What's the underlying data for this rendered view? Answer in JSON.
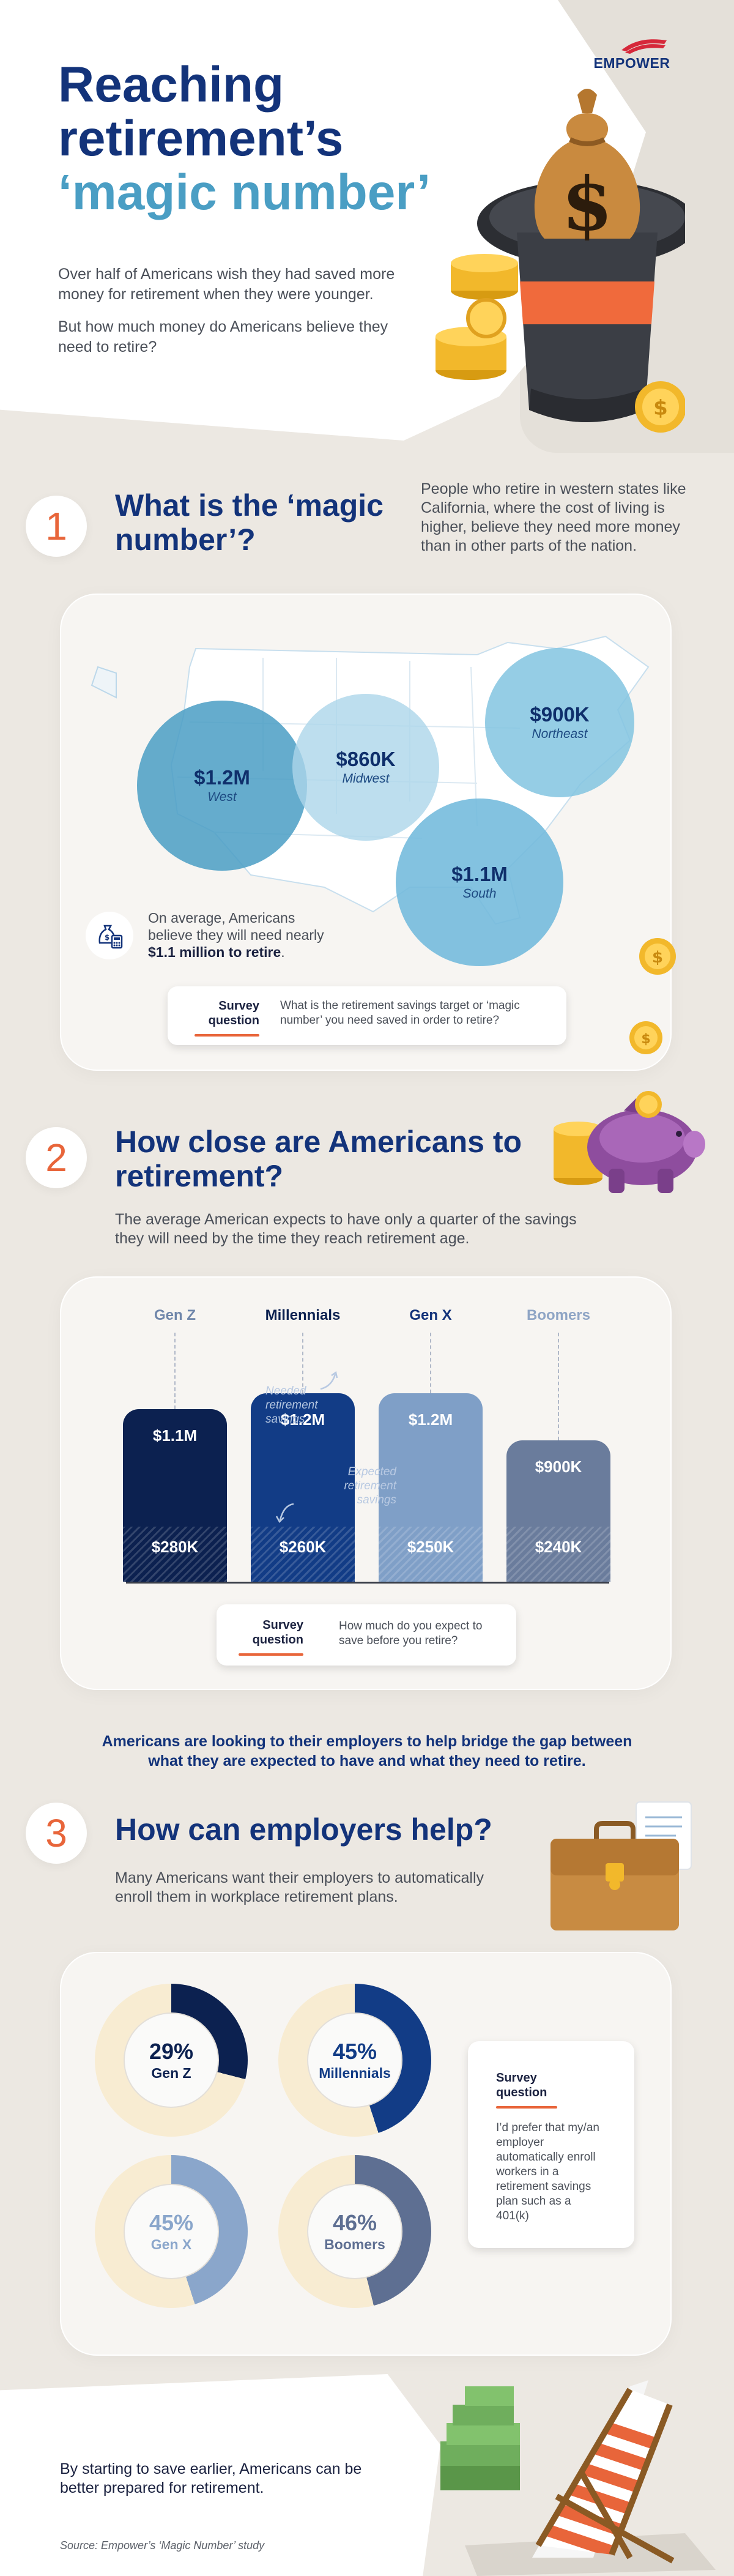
{
  "brand": {
    "logo_text": "EMPOWER",
    "accent_color": "#13337a",
    "orange": "#e8653a"
  },
  "hero": {
    "title_line1": "Reaching",
    "title_line2": "retirement’s",
    "title_accent": "‘magic number’",
    "para1": "Over half of Americans wish they had saved more money for retirement when they were younger.",
    "para2": "But how much money do Americans believe they need to retire?"
  },
  "section1": {
    "number": "1",
    "title": "What is the ‘magic number’?",
    "text": "People who retire in western states like California, where the cost of living is higher, believe they need more money than in other parts of the nation.",
    "regions": [
      {
        "value": "$1.2M",
        "label": "West"
      },
      {
        "value": "$860K",
        "label": "Midwest"
      },
      {
        "value": "$900K",
        "label": "Northeast"
      },
      {
        "value": "$1.1M",
        "label": "South"
      }
    ],
    "note_line1": "On average, Americans",
    "note_line2": "believe they will need nearly",
    "note_bold": "$1.1 million to retire",
    "note_end": ".",
    "survey_label": "Survey question",
    "survey_text": "What is the retirement savings target or ‘magic number’ you need saved in order to retire?"
  },
  "section2": {
    "number": "2",
    "title": "How close are Americans to retirement?",
    "text": "The average American expects to have only a quarter of the savings they will need by the time they reach retirement age.",
    "chart_data": {
      "type": "bar",
      "categories": [
        "Gen Z",
        "Millennials",
        "Gen X",
        "Boomers"
      ],
      "series": [
        {
          "name": "Needed retirement savings",
          "values": [
            1.1,
            1.2,
            1.2,
            0.9
          ],
          "labels": [
            "$1.1M",
            "$1.2M",
            "$1.2M",
            "$900K"
          ]
        },
        {
          "name": "Expected retirement savings",
          "values": [
            0.28,
            0.26,
            0.25,
            0.24
          ],
          "labels": [
            "$280K",
            "$260K",
            "$250K",
            "$240K"
          ]
        }
      ],
      "colors": [
        "#0c2150",
        "#123c86",
        "#7f9fc7",
        "#6a7c9c"
      ],
      "label_colors": [
        "#6f86aa",
        "#0c2150",
        "#13337a",
        "#8fa5c5"
      ]
    },
    "annot_needed": "Needed retirement savings",
    "annot_expected": "Expected retirement savings",
    "survey_label": "Survey question",
    "survey_text": "How much do you expect to save before you retire?"
  },
  "bridge_text": "Americans are looking to their employers to help bridge the gap between what they are expected to have and what they need to retire.",
  "section3": {
    "number": "3",
    "title": "How can employers help?",
    "text": "Many Americans want their employers to automatically enroll them in workplace retirement plans.",
    "chart_data": {
      "type": "pie",
      "categories": [
        "Gen Z",
        "Millennials",
        "Gen X",
        "Boomers"
      ],
      "values": [
        29,
        45,
        45,
        46
      ],
      "labels": [
        "29%",
        "45%",
        "45%",
        "46%"
      ],
      "colors": [
        "#0c2150",
        "#123c86",
        "#8aa6cb",
        "#5e6f92"
      ],
      "track_color": "#f8ecd2"
    },
    "survey_label": "Survey question",
    "survey_text": "I’d prefer that my/an employer automatically enroll workers in a retirement savings plan such as a 401(k)"
  },
  "closing": "By starting to save earlier, Americans can be better prepared for retirement.",
  "source": "Source: Empower’s ‘Magic Number’ study"
}
